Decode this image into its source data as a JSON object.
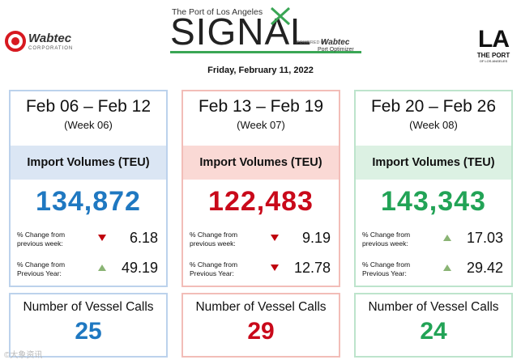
{
  "header": {
    "wabtec_name": "Wabtec",
    "wabtec_sub": "CORPORATION",
    "signal_top": "The Port of Los Angeles",
    "signal_word": "SIGNAL",
    "powered_by": "POWERED BY",
    "signal_brand": "Wabtec",
    "signal_product": "Port Optimizer",
    "date": "Friday, February 11, 2022",
    "la_letters": "LA",
    "la_sub1": "THE PORT",
    "la_sub2": "OF LOS ANGELES"
  },
  "weeks": [
    {
      "range": "Feb 06 – Feb 12",
      "week": "(Week 06)",
      "import_label": "Import Volumes (TEU)",
      "teu": "134,872",
      "prev_week_label_1": "% Change from",
      "prev_week_label_2": "previous week:",
      "prev_week_direction": "down",
      "prev_week_value": "6.18",
      "prev_year_label_1": "% Change from",
      "prev_year_label_2": "Previous Year:",
      "prev_year_direction": "up",
      "prev_year_value": "49.19",
      "vessel_label": "Number of Vessel Calls",
      "vessels": "25"
    },
    {
      "range": "Feb 13 – Feb 19",
      "week": "(Week 07)",
      "import_label": "Import Volumes (TEU)",
      "teu": "122,483",
      "prev_week_label_1": "% Change from",
      "prev_week_label_2": "previous week:",
      "prev_week_direction": "down",
      "prev_week_value": "9.19",
      "prev_year_label_1": "% Change from",
      "prev_year_label_2": "Previous Year:",
      "prev_year_direction": "down",
      "prev_year_value": "12.78",
      "vessel_label": "Number of Vessel Calls",
      "vessels": "29"
    },
    {
      "range": "Feb 20 – Feb 26",
      "week": "(Week 08)",
      "import_label": "Import Volumes (TEU)",
      "teu": "143,343",
      "prev_week_label_1": "% Change from",
      "prev_week_label_2": "previous week:",
      "prev_week_direction": "up",
      "prev_week_value": "17.03",
      "prev_year_label_1": "% Change from",
      "prev_year_label_2": "Previous Year:",
      "prev_year_direction": "up",
      "prev_year_value": "29.42",
      "vessel_label": "Number of Vessel Calls",
      "vessels": "24"
    }
  ],
  "colors": {
    "week1_accent": "#1f78c1",
    "week1_border": "#bcd2ec",
    "week1_band": "#dbe6f4",
    "week2_accent": "#c9091a",
    "week2_border": "#f2bdb8",
    "week2_band": "#fad9d5",
    "week3_accent": "#22a356",
    "week3_border": "#bde4cc",
    "week3_band": "#dcf1e3",
    "arrow_down": "#c0000c",
    "arrow_up": "#8ab474",
    "signal_green": "#3aa655"
  },
  "watermark": "©大象资讯"
}
